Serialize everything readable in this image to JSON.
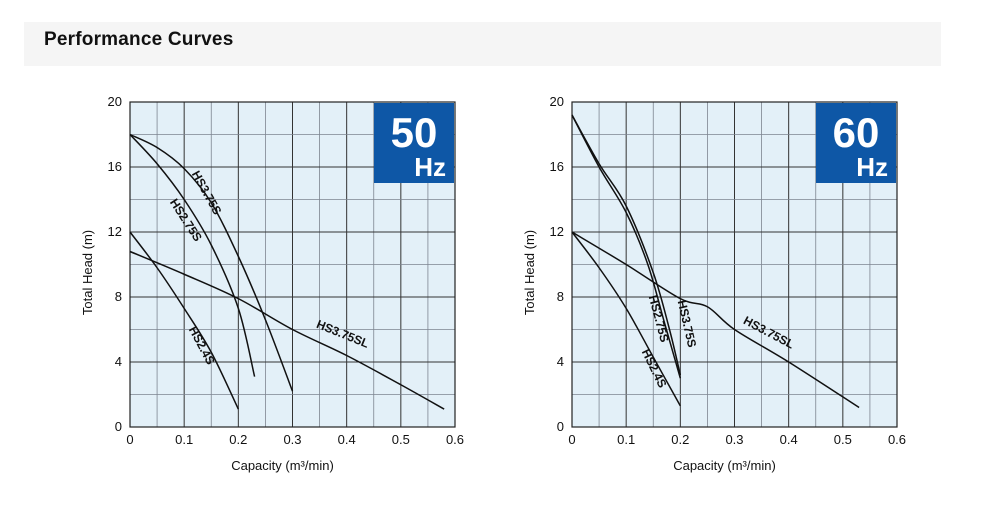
{
  "header": {
    "title": "Performance Curves"
  },
  "colors": {
    "plot_bg": "#e3f0f8",
    "grid": "#000000",
    "badge": "#0e57a6",
    "curve": "#111111"
  },
  "chart_data": [
    {
      "type": "line",
      "badge": {
        "number": "50",
        "unit": "Hz"
      },
      "xlabel": "Capacity (m³/min)",
      "ylabel": "Total Head (m)",
      "xlim": [
        0,
        0.6
      ],
      "ylim": [
        0,
        20
      ],
      "x_ticks": [
        "0",
        "0.1",
        "0.2",
        "0.3",
        "0.4",
        "0.5",
        "0.6"
      ],
      "y_ticks": [
        "0",
        "4",
        "8",
        "12",
        "16",
        "20"
      ],
      "grid": true,
      "series": [
        {
          "name": "HS3.75S",
          "points": [
            [
              0,
              18
            ],
            [
              0.05,
              17.2
            ],
            [
              0.1,
              15.9
            ],
            [
              0.15,
              13.8
            ],
            [
              0.2,
              10.5
            ],
            [
              0.25,
              6.6
            ],
            [
              0.3,
              2.2
            ]
          ]
        },
        {
          "name": "HS2.75S",
          "points": [
            [
              0,
              18
            ],
            [
              0.05,
              16.2
            ],
            [
              0.1,
              14.0
            ],
            [
              0.15,
              11.2
            ],
            [
              0.2,
              7.3
            ],
            [
              0.23,
              3.1
            ]
          ]
        },
        {
          "name": "HS2.4S",
          "points": [
            [
              0,
              12
            ],
            [
              0.05,
              9.8
            ],
            [
              0.1,
              7.3
            ],
            [
              0.15,
              4.6
            ],
            [
              0.2,
              1.1
            ]
          ]
        },
        {
          "name": "HS3.75SL",
          "points": [
            [
              0,
              10.8
            ],
            [
              0.1,
              9.4
            ],
            [
              0.2,
              7.9
            ],
            [
              0.3,
              6.0
            ],
            [
              0.4,
              4.4
            ],
            [
              0.5,
              2.6
            ],
            [
              0.58,
              1.1
            ]
          ]
        }
      ]
    },
    {
      "type": "line",
      "badge": {
        "number": "60",
        "unit": "Hz"
      },
      "xlabel": "Capacity (m³/min)",
      "ylabel": "Total Head (m)",
      "xlim": [
        0,
        0.6
      ],
      "ylim": [
        0,
        20
      ],
      "x_ticks": [
        "0",
        "0.1",
        "0.2",
        "0.3",
        "0.4",
        "0.5",
        "0.6"
      ],
      "y_ticks": [
        "0",
        "4",
        "8",
        "12",
        "16",
        "20"
      ],
      "grid": true,
      "series": [
        {
          "name": "HS3.75S",
          "points": [
            [
              0,
              19.2
            ],
            [
              0.05,
              16.2
            ],
            [
              0.1,
              13.6
            ],
            [
              0.15,
              9.5
            ],
            [
              0.18,
              6.0
            ],
            [
              0.2,
              3.2
            ]
          ]
        },
        {
          "name": "HS2.75S",
          "points": [
            [
              0,
              19.2
            ],
            [
              0.05,
              16.0
            ],
            [
              0.1,
              13.2
            ],
            [
              0.14,
              10.0
            ],
            [
              0.17,
              6.5
            ],
            [
              0.2,
              3.0
            ]
          ]
        },
        {
          "name": "HS2.4S",
          "points": [
            [
              0,
              12
            ],
            [
              0.05,
              9.8
            ],
            [
              0.1,
              7.3
            ],
            [
              0.15,
              4.3
            ],
            [
              0.2,
              1.3
            ]
          ]
        },
        {
          "name": "HS3.75SL",
          "points": [
            [
              0,
              12
            ],
            [
              0.1,
              10.0
            ],
            [
              0.2,
              7.9
            ],
            [
              0.25,
              7.4
            ],
            [
              0.3,
              6.0
            ],
            [
              0.4,
              4.0
            ],
            [
              0.53,
              1.2
            ]
          ]
        }
      ]
    }
  ]
}
